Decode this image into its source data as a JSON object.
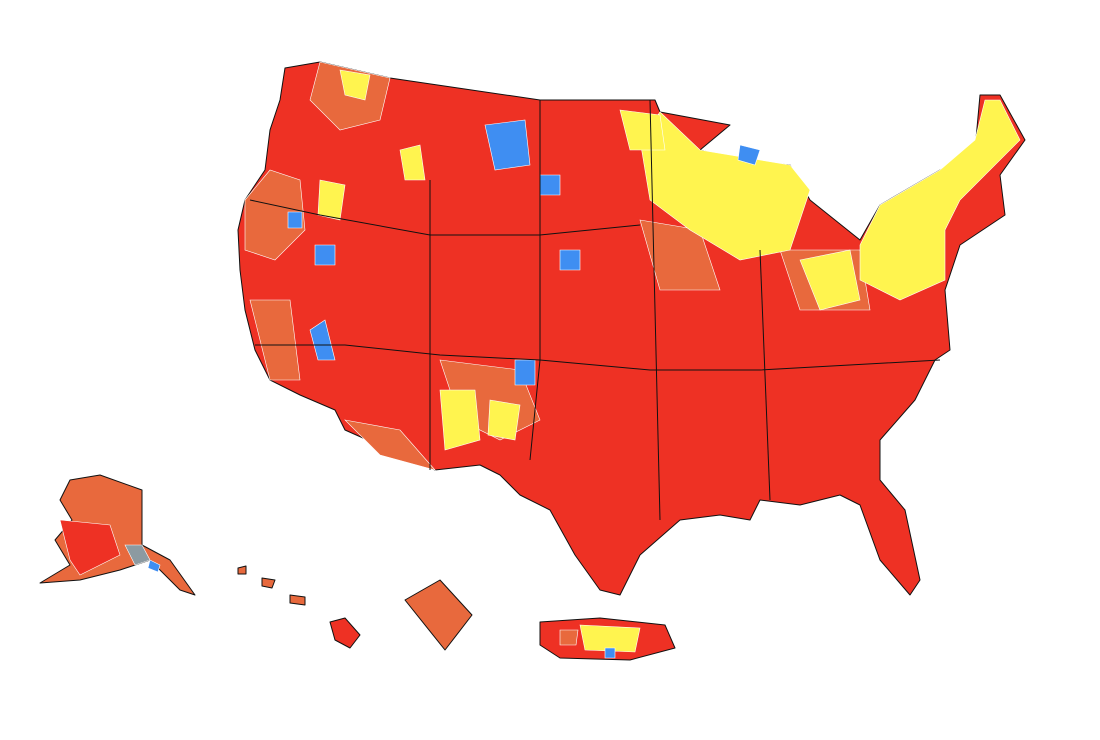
{
  "map": {
    "colors": [
      "#ee3124",
      "#e8693d",
      "#fff44f",
      "#3f8ef2",
      "#8c9aa1"
    ]
  }
}
